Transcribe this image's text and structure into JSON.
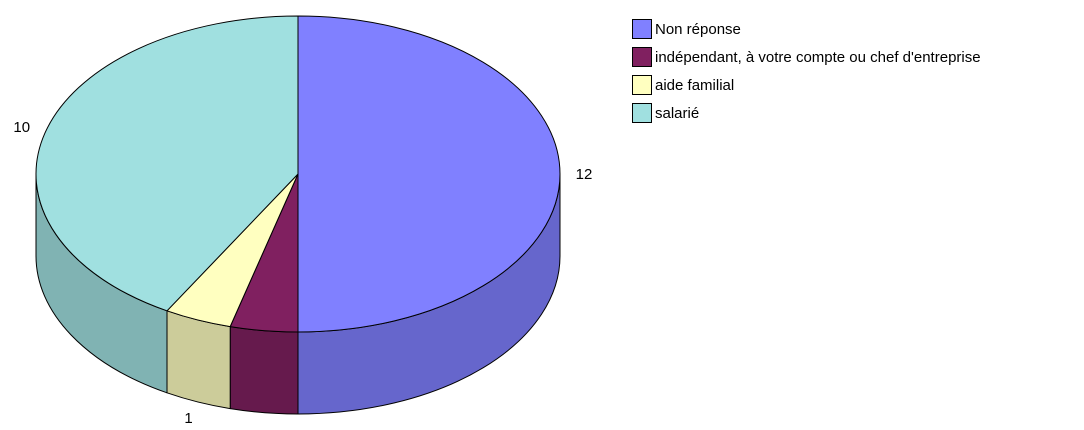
{
  "chart_data": {
    "type": "pie",
    "title": "",
    "three_d": true,
    "legend_position": "top-right",
    "slices": [
      {
        "label": "Non réponse",
        "value": 12,
        "color": "#8080ff",
        "side_color": "#6666cc"
      },
      {
        "label": "indépendant, à votre compte ou chef d'entreprise",
        "value": 1,
        "color": "#802060",
        "side_color": "#661a4d"
      },
      {
        "label": "aide familial",
        "value": 1,
        "color": "#ffffc0",
        "side_color": "#cccc9a"
      },
      {
        "label": "salarié",
        "value": 10,
        "color": "#a0e0e0",
        "side_color": "#80b3b3"
      }
    ]
  }
}
